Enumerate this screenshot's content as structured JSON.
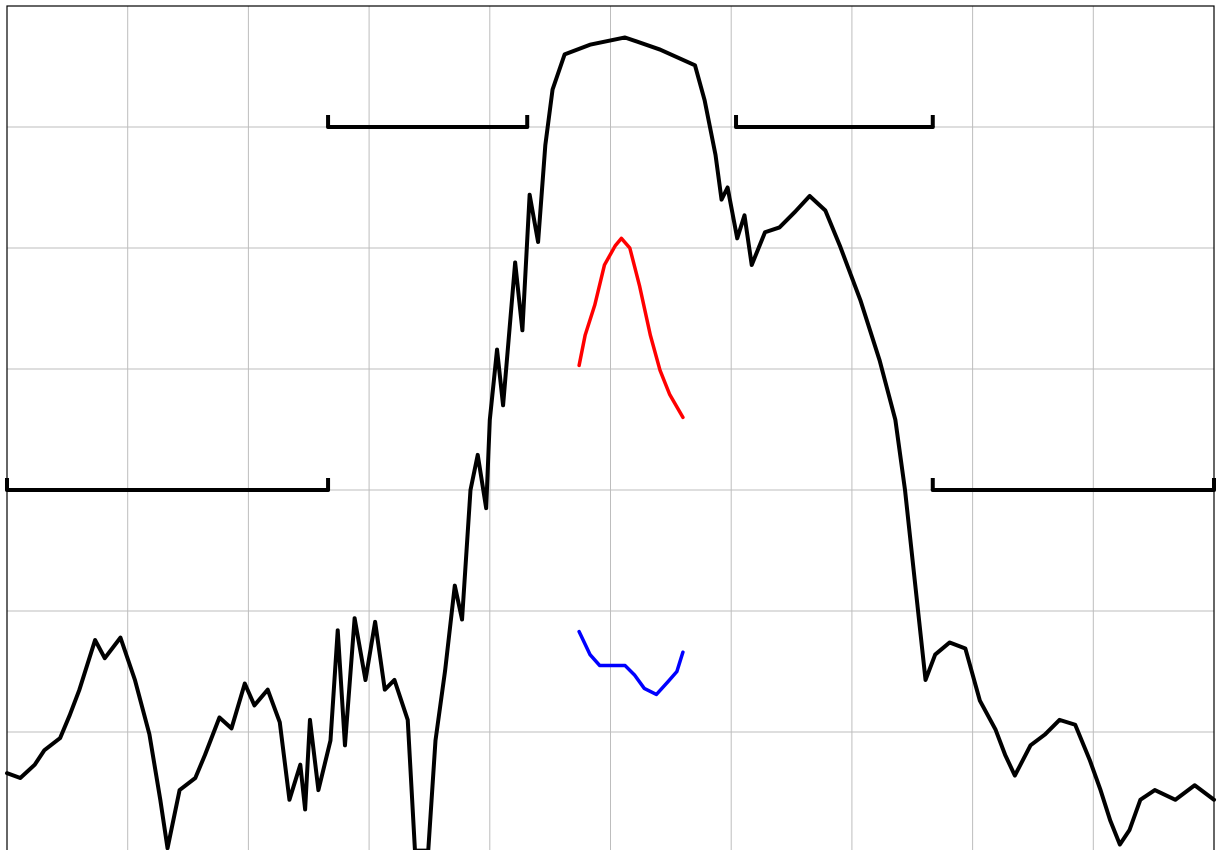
{
  "chart_data": {
    "type": "line",
    "grid": true,
    "xlim": [
      0,
      100
    ],
    "ylim": [
      -70,
      0
    ],
    "xticks": [
      0,
      10,
      20,
      30,
      40,
      50,
      60,
      70,
      80,
      90,
      100
    ],
    "yticks": [
      -70,
      -60,
      -50,
      -40,
      -30,
      -20,
      -10,
      0
    ],
    "series": [
      {
        "color": "#000000",
        "x": [
          0,
          1.1,
          2.3,
          3.1,
          4.4,
          5.2,
          6.0,
          7.3,
          8.1,
          9.4,
          10.6,
          11.8,
          12.7,
          13.3,
          14.3,
          15.6,
          16.4,
          17.6,
          18.6,
          19.7,
          20.5,
          21.6,
          22.6,
          23.4,
          24.3,
          24.7,
          25.1,
          25.8,
          26.8,
          27.4,
          28.0,
          28.8,
          29.7,
          30.5,
          31.3,
          32.1,
          33.2,
          33.8,
          34.9,
          35.5,
          36.3,
          37.1,
          37.7,
          38.4,
          39.0,
          39.7,
          40.0,
          40.6,
          41.1,
          42.1,
          42.7,
          43.3,
          44.0,
          44.6,
          45.2,
          46.2,
          48.3,
          51.2,
          54.1,
          57.0,
          57.8,
          58.7,
          59.2,
          59.7,
          60.5,
          61.1,
          61.7,
          62.8,
          64.0,
          65.3,
          66.5,
          67.8,
          69.0,
          70.7,
          72.3,
          73.6,
          74.4,
          75.2,
          76.1,
          76.9,
          78.1,
          79.4,
          80.6,
          81.9,
          82.7,
          83.5,
          84.8,
          86.0,
          87.2,
          88.5,
          89.7,
          90.6,
          91.4,
          92.2,
          93.0,
          93.9,
          95.1,
          96.8,
          98.4,
          100
        ],
        "values": [
          -63.4,
          -63.8,
          -62.7,
          -61.5,
          -60.5,
          -58.6,
          -56.5,
          -52.4,
          -53.9,
          -52.2,
          -55.7,
          -60.2,
          -65.6,
          -69.6,
          -64.8,
          -63.8,
          -61.9,
          -58.8,
          -59.7,
          -56.0,
          -57.8,
          -56.5,
          -59.2,
          -65.6,
          -62.7,
          -66.4,
          -59.0,
          -64.8,
          -60.7,
          -51.6,
          -61.1,
          -50.6,
          -55.7,
          -50.9,
          -56.5,
          -55.7,
          -59.0,
          -69.8,
          -69.8,
          -60.7,
          -54.9,
          -47.9,
          -50.7,
          -40.0,
          -37.1,
          -41.5,
          -34.2,
          -28.4,
          -33.0,
          -21.2,
          -26.8,
          -15.6,
          -19.5,
          -11.5,
          -6.9,
          -4.0,
          -3.2,
          -2.6,
          -3.6,
          -4.9,
          -7.8,
          -12.3,
          -16.0,
          -15.0,
          -19.2,
          -17.3,
          -21.4,
          -18.7,
          -18.3,
          -17.0,
          -15.7,
          -16.9,
          -19.8,
          -24.3,
          -29.3,
          -34.2,
          -40.0,
          -47.4,
          -55.7,
          -53.6,
          -52.6,
          -53.1,
          -57.4,
          -59.8,
          -61.9,
          -63.6,
          -61.1,
          -60.2,
          -59.0,
          -59.4,
          -62.3,
          -64.8,
          -67.3,
          -69.3,
          -68.1,
          -65.6,
          -64.8,
          -65.6,
          -64.4,
          -65.6
        ]
      },
      {
        "color": "#ff0000",
        "x": [
          47.4,
          47.9,
          48.7,
          49.5,
          50.4,
          50.9,
          51.6,
          52.4,
          53.3,
          54.1,
          54.9,
          56.0
        ],
        "values": [
          -29.7,
          -27.2,
          -24.7,
          -21.4,
          -19.8,
          -19.2,
          -20.0,
          -23.1,
          -27.2,
          -30.1,
          -32.1,
          -34.0
        ]
      },
      {
        "color": "#0000ff",
        "x": [
          47.4,
          48.3,
          49.1,
          50.4,
          51.2,
          52.0,
          52.8,
          53.8,
          54.8,
          55.5,
          56.0
        ],
        "values": [
          -51.7,
          -53.6,
          -54.5,
          -54.5,
          -54.5,
          -55.3,
          -56.4,
          -56.9,
          -55.8,
          -55.0,
          -53.4
        ]
      }
    ],
    "limits": [
      {
        "x": [
          0,
          26.6
        ],
        "values": [
          -40,
          -40
        ]
      },
      {
        "x": [
          26.6,
          43.1
        ],
        "values": [
          -10,
          -10
        ]
      },
      {
        "x": [
          60.4,
          76.7
        ],
        "values": [
          -10,
          -10
        ]
      },
      {
        "x": [
          76.7,
          100
        ],
        "values": [
          -40,
          -40
        ]
      }
    ]
  }
}
